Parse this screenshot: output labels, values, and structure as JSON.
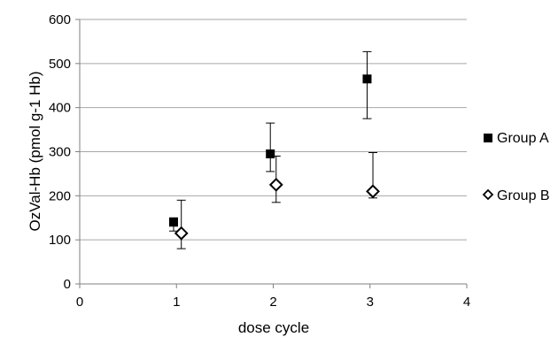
{
  "chart_data": {
    "type": "scatter",
    "xlabel": "dose cycle",
    "ylabel": "OzVal-Hb (pmol g-1 Hb)",
    "xlim": [
      0,
      4
    ],
    "ylim": [
      0,
      600
    ],
    "x_ticks": [
      "0",
      "1",
      "2",
      "3",
      "4"
    ],
    "y_ticks": [
      "0",
      "100",
      "200",
      "300",
      "400",
      "500",
      "600"
    ],
    "grid": "horizontal",
    "legend_position": "right",
    "series": [
      {
        "name": "Group A",
        "marker": "filled-square",
        "color": "#000000",
        "points": [
          {
            "x": 0.97,
            "y": 140,
            "err_low": 20,
            "err_high": 10
          },
          {
            "x": 1.97,
            "y": 295,
            "err_low": 40,
            "err_high": 70
          },
          {
            "x": 2.97,
            "y": 465,
            "err_low": 90,
            "err_high": 62
          }
        ]
      },
      {
        "name": "Group B",
        "marker": "open-diamond",
        "color": "#000000",
        "points": [
          {
            "x": 1.05,
            "y": 115,
            "err_low": 35,
            "err_high": 75
          },
          {
            "x": 2.03,
            "y": 225,
            "err_low": 40,
            "err_high": 65
          },
          {
            "x": 3.03,
            "y": 210,
            "err_low": 15,
            "err_high": 88
          }
        ]
      }
    ]
  }
}
